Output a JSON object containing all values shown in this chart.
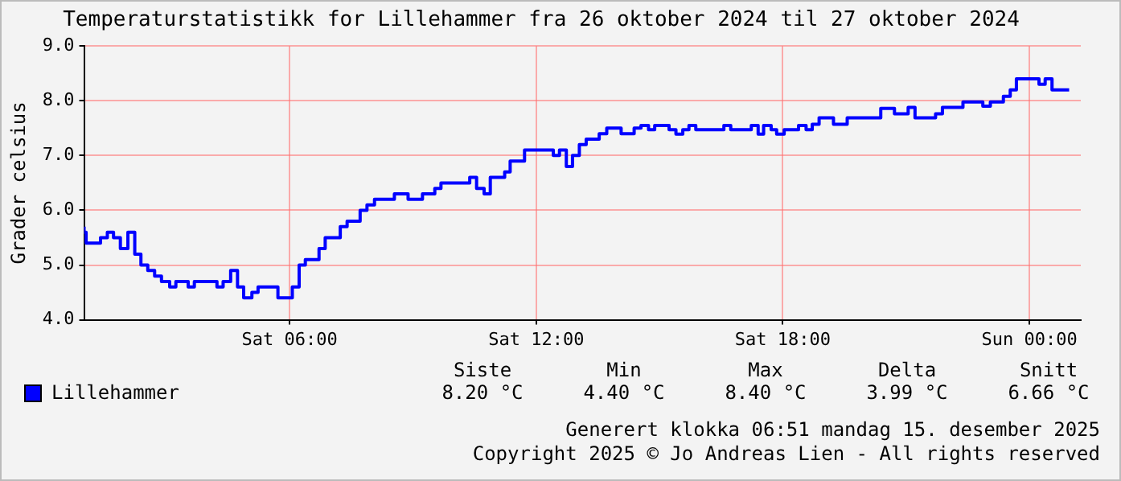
{
  "chart_data": {
    "type": "step",
    "title": "Temperaturstatistikk for Lillehammer fra 26 oktober 2024 til 27 oktober 2024",
    "ylabel": "Grader celsius",
    "xlim": [
      "2024-10-26T01:00",
      "2024-10-27T01:15"
    ],
    "xticks": [
      {
        "value": "2024-10-26T06:00",
        "label": "Sat 06:00"
      },
      {
        "value": "2024-10-26T12:00",
        "label": "Sat 12:00"
      },
      {
        "value": "2024-10-26T18:00",
        "label": "Sat 18:00"
      },
      {
        "value": "2024-10-27T00:00",
        "label": "Sun 00:00"
      }
    ],
    "ylim": [
      4,
      9
    ],
    "yticks": [
      {
        "value": 4,
        "label": "4.0"
      },
      {
        "value": 5,
        "label": "5.0"
      },
      {
        "value": 6,
        "label": "6.0"
      },
      {
        "value": 7,
        "label": "7.0"
      },
      {
        "value": 8,
        "label": "8.0"
      },
      {
        "value": 9,
        "label": "9.0"
      }
    ],
    "grid": true,
    "legend": "bottom left",
    "series": [
      {
        "name": "Lillehammer",
        "color": "#0000ff",
        "x": [
          "2024-10-26T01:00",
          "2024-10-26T01:03",
          "2024-10-26T01:24",
          "2024-10-26T01:34",
          "2024-10-26T01:43",
          "2024-10-26T01:53",
          "2024-10-26T02:04",
          "2024-10-26T02:14",
          "2024-10-26T02:23",
          "2024-10-26T02:33",
          "2024-10-26T02:43",
          "2024-10-26T02:53",
          "2024-10-26T03:05",
          "2024-10-26T03:14",
          "2024-10-26T03:32",
          "2024-10-26T03:41",
          "2024-10-26T04:14",
          "2024-10-26T04:23",
          "2024-10-26T04:34",
          "2024-10-26T04:44",
          "2024-10-26T04:53",
          "2024-10-26T05:05",
          "2024-10-26T05:14",
          "2024-10-26T05:43",
          "2024-10-26T06:04",
          "2024-10-26T06:14",
          "2024-10-26T06:23",
          "2024-10-26T06:43",
          "2024-10-26T06:52",
          "2024-10-26T07:14",
          "2024-10-26T07:24",
          "2024-10-26T07:43",
          "2024-10-26T07:53",
          "2024-10-26T08:04",
          "2024-10-26T08:33",
          "2024-10-26T08:53",
          "2024-10-26T09:14",
          "2024-10-26T09:32",
          "2024-10-26T09:41",
          "2024-10-26T10:23",
          "2024-10-26T10:33",
          "2024-10-26T10:44",
          "2024-10-26T10:53",
          "2024-10-26T11:14",
          "2024-10-26T11:22",
          "2024-10-26T11:43",
          "2024-10-26T12:25",
          "2024-10-26T12:34",
          "2024-10-26T12:44",
          "2024-10-26T12:53",
          "2024-10-26T13:03",
          "2024-10-26T13:13",
          "2024-10-26T13:32",
          "2024-10-26T13:43",
          "2024-10-26T14:04",
          "2024-10-26T14:23",
          "2024-10-26T14:33",
          "2024-10-26T14:44",
          "2024-10-26T14:53",
          "2024-10-26T15:14",
          "2024-10-26T15:24",
          "2024-10-26T15:34",
          "2024-10-26T15:43",
          "2024-10-26T15:53",
          "2024-10-26T16:34",
          "2024-10-26T16:44",
          "2024-10-26T17:14",
          "2024-10-26T17:24",
          "2024-10-26T17:32",
          "2024-10-26T17:43",
          "2024-10-26T17:51",
          "2024-10-26T18:02",
          "2024-10-26T18:23",
          "2024-10-26T18:34",
          "2024-10-26T18:43",
          "2024-10-26T18:53",
          "2024-10-26T19:14",
          "2024-10-26T19:34",
          "2024-10-26T20:23",
          "2024-10-26T20:43",
          "2024-10-26T21:03",
          "2024-10-26T21:13",
          "2024-10-26T21:43",
          "2024-10-26T21:53",
          "2024-10-26T22:23",
          "2024-10-26T22:52",
          "2024-10-26T23:03",
          "2024-10-26T23:22",
          "2024-10-26T23:32",
          "2024-10-26T23:41",
          "2024-10-27T00:14",
          "2024-10-27T00:23",
          "2024-10-27T00:33",
          "2024-10-27T00:44",
          "2024-10-27T00:58"
        ],
        "values": [
          5.7,
          5.6,
          5.4,
          5.5,
          5.6,
          5.5,
          5.3,
          5.6,
          5.2,
          5.0,
          4.9,
          4.8,
          4.7,
          4.6,
          4.7,
          4.6,
          4.7,
          4.6,
          4.7,
          4.9,
          4.6,
          4.4,
          4.5,
          4.6,
          4.4,
          4.6,
          5.0,
          5.1,
          5.3,
          5.5,
          5.7,
          5.8,
          6.0,
          6.1,
          6.2,
          6.3,
          6.2,
          6.3,
          6.4,
          6.5,
          6.6,
          6.4,
          6.3,
          6.6,
          6.7,
          6.9,
          7.1,
          7.0,
          7.1,
          6.8,
          7.0,
          7.2,
          7.3,
          7.4,
          7.5,
          7.4,
          7.5,
          7.55,
          7.47,
          7.55,
          7.47,
          7.39,
          7.47,
          7.55,
          7.47,
          7.55,
          7.47,
          7.55,
          7.39,
          7.55,
          7.47,
          7.39,
          7.47,
          7.55,
          7.47,
          7.57,
          7.69,
          7.57,
          7.69,
          7.86,
          7.76,
          7.88,
          7.69,
          7.76,
          7.88,
          7.98,
          7.9,
          7.98,
          8.08,
          8.2,
          8.4,
          8.3,
          8.4,
          8.2,
          8.2
        ]
      }
    ],
    "annotations": [
      "Siste",
      "Min",
      "Max",
      "Delta",
      "Snitt",
      "8.20 °C",
      "4.40 °C",
      "8.40 °C",
      "3.99 °C",
      "6.66 °C",
      "Generert klokka 06:51 mandag 15. desember 2025",
      "Copyright 2025 © Jo Andreas Lien - All rights reserved"
    ]
  }
}
